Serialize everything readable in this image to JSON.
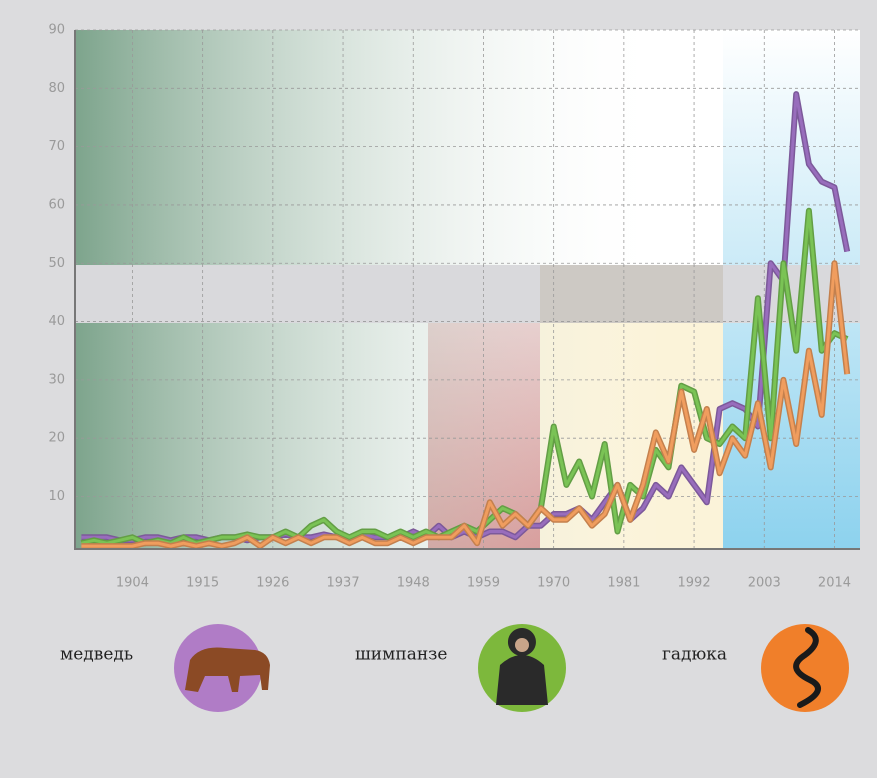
{
  "chart_data": {
    "type": "line",
    "x": [
      1896,
      1898,
      1900,
      1902,
      1904,
      1906,
      1908,
      1910,
      1912,
      1914,
      1916,
      1918,
      1920,
      1922,
      1924,
      1926,
      1928,
      1930,
      1932,
      1934,
      1936,
      1938,
      1940,
      1942,
      1944,
      1946,
      1948,
      1950,
      1952,
      1954,
      1956,
      1958,
      1960,
      1962,
      1964,
      1966,
      1968,
      1970,
      1972,
      1974,
      1976,
      1978,
      1980,
      1982,
      1984,
      1986,
      1988,
      1990,
      1992,
      1994,
      1996,
      1998,
      2000,
      2002,
      2004,
      2006,
      2008,
      2010,
      2012,
      2014,
      2016
    ],
    "series": [
      {
        "name": "медведь",
        "color": "#9b6fc0",
        "values": [
          3,
          3,
          3,
          2.5,
          2.5,
          3,
          3,
          2.5,
          3,
          3,
          2.5,
          3,
          3,
          2.5,
          3,
          3,
          3.5,
          3,
          3,
          3.5,
          3,
          3,
          3.5,
          3,
          3,
          3,
          4,
          3,
          5,
          3,
          4,
          3,
          4,
          4,
          3,
          5,
          5,
          7,
          7,
          8,
          6,
          9,
          12,
          6,
          8,
          12,
          10,
          15,
          12,
          9,
          25,
          26,
          25,
          22,
          50,
          47,
          79,
          67,
          64,
          63,
          52
        ]
      },
      {
        "name": "шимпанзе",
        "color": "#7cc656",
        "values": [
          2,
          2.5,
          2,
          2.5,
          3,
          2,
          2.5,
          2,
          3,
          2,
          2.5,
          3,
          3,
          3.5,
          3,
          3,
          4,
          3,
          5,
          6,
          4,
          3,
          4,
          4,
          3,
          4,
          3,
          4,
          3,
          4,
          5,
          4,
          6,
          8,
          7,
          5,
          8,
          22,
          12,
          16,
          10,
          19,
          4,
          12,
          10,
          18,
          15,
          29,
          28,
          20,
          19,
          22,
          20,
          44,
          20,
          50,
          35,
          59,
          35,
          38,
          37
        ]
      },
      {
        "name": "гадюка",
        "color": "#f5a060",
        "values": [
          1.5,
          1.5,
          1.5,
          1.5,
          1.5,
          2,
          2,
          1.5,
          2,
          1.5,
          2,
          1.5,
          2,
          3,
          1.5,
          3,
          2,
          3,
          2,
          3,
          3,
          2,
          3,
          2,
          2,
          3,
          2,
          3,
          3,
          3,
          5,
          2,
          9,
          5,
          7,
          5,
          8,
          6,
          6,
          8,
          5,
          7,
          12,
          6,
          12,
          21,
          16,
          28,
          18,
          25,
          14,
          20,
          17,
          26,
          15,
          30,
          19,
          35,
          24,
          50,
          31
        ]
      }
    ],
    "xlim": [
      1895,
      2018
    ],
    "xticks": [
      1904,
      1915,
      1926,
      1937,
      1948,
      1959,
      1970,
      1981,
      1992,
      2003,
      2014
    ],
    "ylim": [
      1,
      90
    ],
    "yticks": [
      10,
      20,
      30,
      40,
      50,
      60,
      70,
      80,
      90
    ],
    "grid": true
  }
}
